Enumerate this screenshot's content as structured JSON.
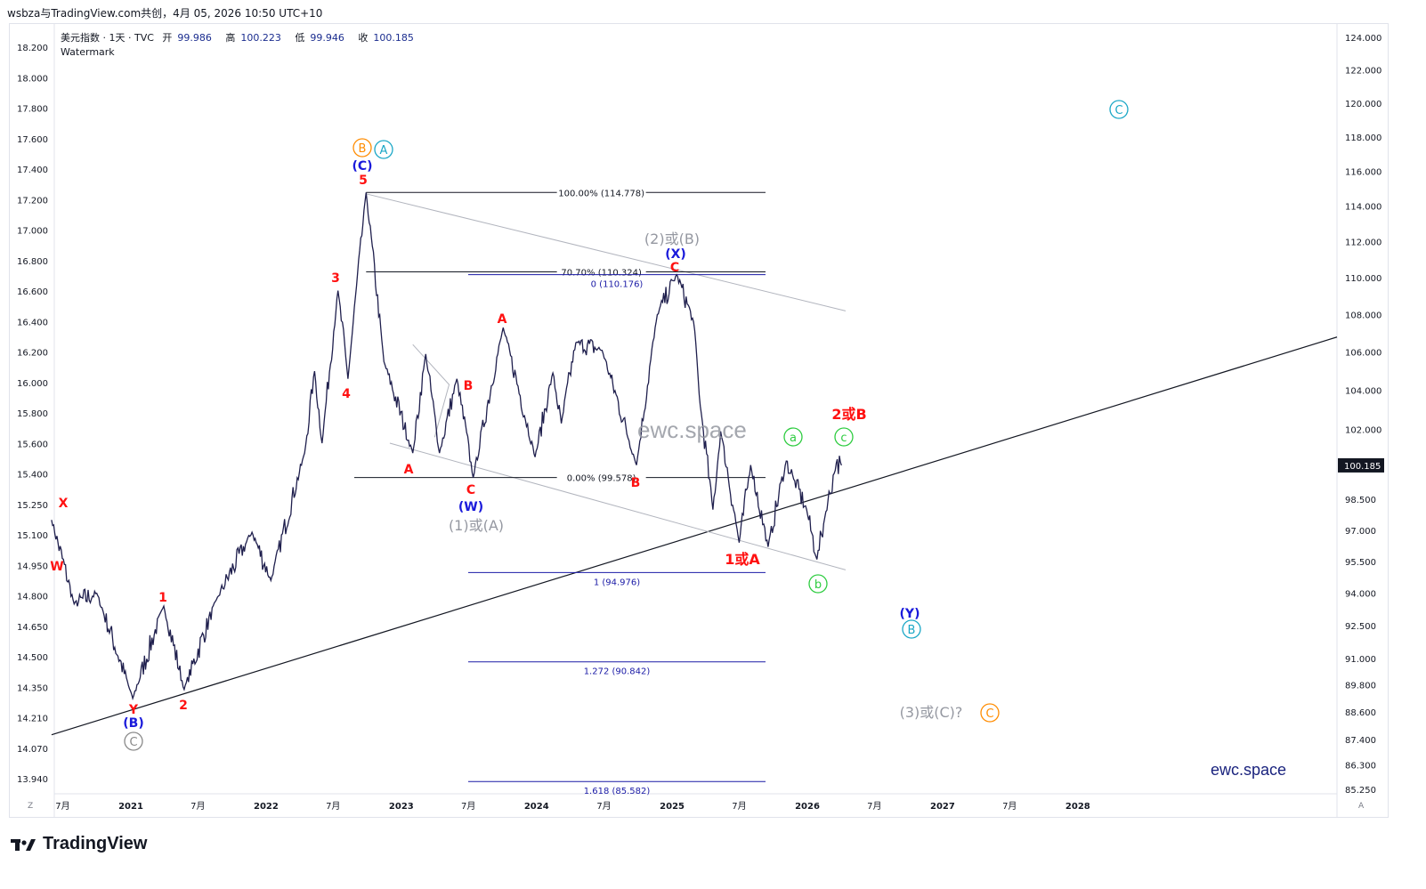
{
  "header": {
    "title": "wsbza与TradingView.com共创，4月 05, 2026 10:50 UTC+10"
  },
  "legend": {
    "symbol": "美元指数 · 1天 · TVC",
    "open_label": "开",
    "open": "99.986",
    "high_label": "高",
    "high": "100.223",
    "low_label": "低",
    "low": "99.946",
    "close_label": "收",
    "close": "100.185",
    "second_line": "Watermark"
  },
  "watermark": "ewc.space",
  "site_label": "ewc.space",
  "brand": "TradingView",
  "corner_left": "Z",
  "corner_right": "A",
  "chart_data": {
    "type": "line",
    "symbol": "DXY",
    "timeframe": "1D",
    "right_axis": {
      "labels": [
        "124.000",
        "122.000",
        "120.000",
        "118.000",
        "116.000",
        "114.000",
        "112.000",
        "110.000",
        "108.000",
        "106.000",
        "104.000",
        "102.000",
        "100.185",
        "98.500",
        "97.000",
        "95.500",
        "94.000",
        "92.500",
        "91.000",
        "89.800",
        "88.600",
        "87.400",
        "86.300",
        "85.250"
      ],
      "values": [
        124,
        122,
        120,
        118,
        116,
        114,
        112,
        110,
        108,
        106,
        104,
        102,
        100.185,
        98.5,
        97,
        95.5,
        94,
        92.5,
        91,
        89.8,
        88.6,
        87.4,
        86.3,
        85.25
      ],
      "last_price_label": "100.185",
      "last_price": 100.185,
      "log_scale": true
    },
    "left_axis": {
      "labels": [
        "18.200",
        "18.000",
        "17.800",
        "17.600",
        "17.400",
        "17.200",
        "17.000",
        "16.800",
        "16.600",
        "16.400",
        "16.200",
        "16.000",
        "15.800",
        "15.600",
        "15.400",
        "15.250",
        "15.100",
        "14.950",
        "14.800",
        "14.650",
        "14.500",
        "14.350",
        "14.210",
        "14.070",
        "13.940"
      ]
    },
    "x_axis": {
      "labels": [
        "7月",
        "2021",
        "7月",
        "2022",
        "7月",
        "2023",
        "7月",
        "2024",
        "7月",
        "2025",
        "7月",
        "2026",
        "7月",
        "2027",
        "7月",
        "2028"
      ],
      "dates": [
        "2020-07",
        "2021-01",
        "2021-07",
        "2022-01",
        "2022-07",
        "2023-01",
        "2023-07",
        "2024-01",
        "2024-07",
        "2025-01",
        "2025-07",
        "2026-01",
        "2026-07",
        "2027-01",
        "2027-07",
        "2028-01"
      ]
    },
    "price_anchors": [
      {
        "date": "2020-06-01",
        "price": 97.5
      },
      {
        "date": "2020-08-01",
        "price": 93.5
      },
      {
        "date": "2020-10-01",
        "price": 94.0
      },
      {
        "date": "2021-01-06",
        "price": 89.2
      },
      {
        "date": "2021-03-31",
        "price": 93.4
      },
      {
        "date": "2021-05-25",
        "price": 89.6
      },
      {
        "date": "2021-08-20",
        "price": 93.7
      },
      {
        "date": "2021-11-24",
        "price": 96.9
      },
      {
        "date": "2022-01-14",
        "price": 94.6
      },
      {
        "date": "2022-04-15",
        "price": 100.8
      },
      {
        "date": "2022-05-12",
        "price": 105.0
      },
      {
        "date": "2022-06-01",
        "price": 101.3
      },
      {
        "date": "2022-07-14",
        "price": 109.3
      },
      {
        "date": "2022-08-10",
        "price": 104.6
      },
      {
        "date": "2022-09-28",
        "price": 114.778
      },
      {
        "date": "2022-11-15",
        "price": 105.5
      },
      {
        "date": "2023-02-01",
        "price": 100.8
      },
      {
        "date": "2023-03-08",
        "price": 105.9
      },
      {
        "date": "2023-04-14",
        "price": 100.8
      },
      {
        "date": "2023-05-31",
        "price": 104.6
      },
      {
        "date": "2023-07-14",
        "price": 99.578
      },
      {
        "date": "2023-10-03",
        "price": 107.3
      },
      {
        "date": "2023-12-28",
        "price": 100.6
      },
      {
        "date": "2024-02-14",
        "price": 104.9
      },
      {
        "date": "2024-03-08",
        "price": 102.3
      },
      {
        "date": "2024-04-16",
        "price": 106.5
      },
      {
        "date": "2024-06-26",
        "price": 106.1
      },
      {
        "date": "2024-09-27",
        "price": 100.2
      },
      {
        "date": "2024-11-22",
        "price": 108.0
      },
      {
        "date": "2025-01-13",
        "price": 110.176
      },
      {
        "date": "2025-02-28",
        "price": 107.6
      },
      {
        "date": "2025-03-18",
        "price": 103.2
      },
      {
        "date": "2025-04-21",
        "price": 98.0
      },
      {
        "date": "2025-05-12",
        "price": 101.9
      },
      {
        "date": "2025-07-01",
        "price": 96.4
      },
      {
        "date": "2025-08-01",
        "price": 100.2
      },
      {
        "date": "2025-09-17",
        "price": 96.2
      },
      {
        "date": "2025-11-05",
        "price": 100.4
      },
      {
        "date": "2025-11-25",
        "price": 99.5
      },
      {
        "date": "2025-12-30",
        "price": 98.0
      },
      {
        "date": "2026-01-27",
        "price": 95.6
      },
      {
        "date": "2026-02-20",
        "price": 97.9
      },
      {
        "date": "2026-03-20",
        "price": 100.3
      },
      {
        "date": "2026-04-03",
        "price": 100.185
      }
    ],
    "fib_retracement": [
      {
        "label": "100.00% (114.778)",
        "price": 114.778
      },
      {
        "label": "70.70% (110.324)",
        "price": 110.324
      },
      {
        "label": "0.00% (99.578)",
        "price": 99.578
      }
    ],
    "fib_extension": [
      {
        "label": "0 (110.176)",
        "price": 110.176
      },
      {
        "label": "1 (94.976)",
        "price": 94.976
      },
      {
        "label": "1.272 (90.842)",
        "price": 90.842
      },
      {
        "label": "1.618 (85.582)",
        "price": 85.582
      }
    ],
    "wave_labels": [
      {
        "text": "X",
        "color": "#ff1111"
      },
      {
        "text": "Y",
        "color": "#ff1111"
      },
      {
        "text": "(B)",
        "color": "#1a1adb"
      },
      {
        "text": "C",
        "color": "#888888"
      },
      {
        "text": "1",
        "color": "#ff1111"
      },
      {
        "text": "2",
        "color": "#ff1111"
      },
      {
        "text": "3",
        "color": "#ff1111"
      },
      {
        "text": "4",
        "color": "#ff1111"
      },
      {
        "text": "5",
        "color": "#ff1111"
      },
      {
        "text": "(C)",
        "color": "#1a1adb"
      },
      {
        "text": "B",
        "color": "#ff8c00"
      },
      {
        "text": "A",
        "color": "#1aa7c6"
      },
      {
        "text": "A",
        "color": "#ff1111"
      },
      {
        "text": "B",
        "color": "#ff1111"
      },
      {
        "text": "C",
        "color": "#ff1111"
      },
      {
        "text": "(W)",
        "color": "#1a1adb"
      },
      {
        "text": "(1)或(A)",
        "color": "#9598a1"
      },
      {
        "text": "A",
        "color": "#ff1111"
      },
      {
        "text": "B",
        "color": "#ff1111"
      },
      {
        "text": "(2)或(B)",
        "color": "#9598a1"
      },
      {
        "text": "(X)",
        "color": "#1a1adb"
      },
      {
        "text": "C",
        "color": "#ff1111"
      },
      {
        "text": "1或A",
        "color": "#ff1111"
      },
      {
        "text": "a",
        "color": "#2ecc40"
      },
      {
        "text": "b",
        "color": "#2ecc40"
      },
      {
        "text": "c",
        "color": "#2ecc40"
      },
      {
        "text": "2或B",
        "color": "#ff1111"
      },
      {
        "text": "(Y)",
        "color": "#1a1adb"
      },
      {
        "text": "B",
        "color": "#1aa7c6"
      },
      {
        "text": "(3)或(C)?",
        "color": "#9598a1"
      },
      {
        "text": "C",
        "color": "#ff8c00"
      },
      {
        "text": "C",
        "color": "#1aa7c6"
      },
      {
        "text": "W",
        "color": "#ff1111"
      }
    ],
    "colors": {
      "price_line": "#1f1f4d",
      "fib_retracement": "#131722",
      "fib_extension": "#1a1aa6",
      "trendline": "#131722",
      "channel": "#b2b5be"
    },
    "grid": false,
    "legend_position": "top-left"
  }
}
